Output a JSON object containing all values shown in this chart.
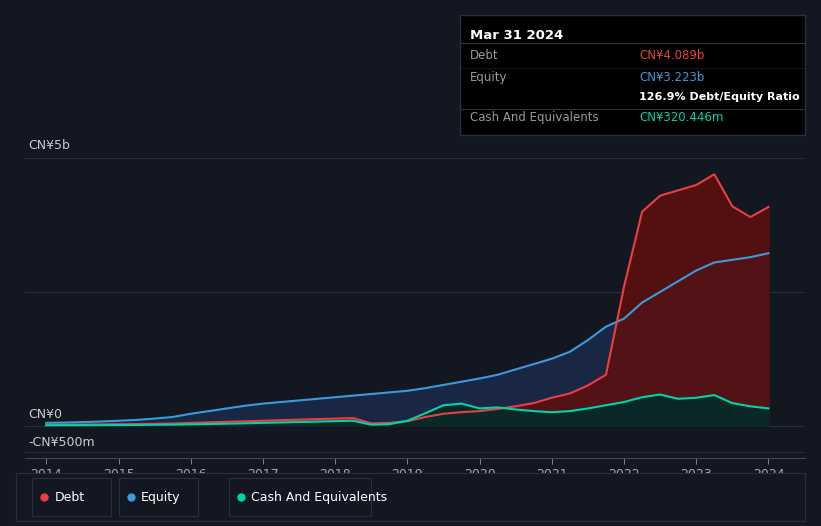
{
  "background_color": "#131722",
  "plot_bg_color": "#131722",
  "ylabel_top": "CN¥5b",
  "ylabel_zero": "CN¥0",
  "ylabel_neg": "-CN¥500m",
  "x_ticks": [
    2014,
    2015,
    2016,
    2017,
    2018,
    2019,
    2020,
    2021,
    2022,
    2023,
    2024
  ],
  "debt_color": "#e84040",
  "equity_color": "#3a9bdc",
  "cash_color": "#00d4aa",
  "debt_fill_color": "#5a1010",
  "equity_fill_color": "#1a2744",
  "cash_fill_color": "#0a2828",
  "ylim_min": -600000000,
  "ylim_max": 5500000000,
  "debt_label": "Debt",
  "equity_label": "Equity",
  "cash_label": "Cash And Equivalents",
  "tooltip_title": "Mar 31 2024",
  "tooltip_debt_label": "Debt",
  "tooltip_debt_value": "CN¥4.089b",
  "tooltip_equity_label": "Equity",
  "tooltip_equity_value": "CN¥3.223b",
  "tooltip_ratio": "126.9% Debt/Equity Ratio",
  "tooltip_cash_label": "Cash And Equivalents",
  "tooltip_cash_value": "CN¥320.446m",
  "years": [
    2014.0,
    2014.25,
    2014.5,
    2014.75,
    2015.0,
    2015.25,
    2015.5,
    2015.75,
    2016.0,
    2016.25,
    2016.5,
    2016.75,
    2017.0,
    2017.25,
    2017.5,
    2017.75,
    2018.0,
    2018.25,
    2018.5,
    2018.75,
    2019.0,
    2019.25,
    2019.5,
    2019.75,
    2020.0,
    2020.25,
    2020.5,
    2020.75,
    2021.0,
    2021.25,
    2021.5,
    2021.75,
    2022.0,
    2022.25,
    2022.5,
    2022.75,
    2023.0,
    2023.25,
    2023.5,
    2023.75,
    2024.0
  ],
  "debt": [
    15000000,
    18000000,
    20000000,
    22000000,
    25000000,
    28000000,
    32000000,
    38000000,
    50000000,
    60000000,
    70000000,
    80000000,
    90000000,
    100000000,
    110000000,
    120000000,
    130000000,
    140000000,
    40000000,
    50000000,
    80000000,
    160000000,
    220000000,
    250000000,
    270000000,
    310000000,
    360000000,
    420000000,
    520000000,
    600000000,
    750000000,
    950000000,
    2600000000,
    4000000000,
    4300000000,
    4400000000,
    4500000000,
    4700000000,
    4100000000,
    3900000000,
    4089000000
  ],
  "equity": [
    50000000,
    55000000,
    65000000,
    75000000,
    90000000,
    105000000,
    130000000,
    160000000,
    220000000,
    270000000,
    320000000,
    370000000,
    410000000,
    440000000,
    470000000,
    500000000,
    530000000,
    560000000,
    590000000,
    620000000,
    650000000,
    700000000,
    760000000,
    820000000,
    880000000,
    950000000,
    1050000000,
    1150000000,
    1250000000,
    1380000000,
    1600000000,
    1850000000,
    2000000000,
    2300000000,
    2500000000,
    2700000000,
    2900000000,
    3050000000,
    3100000000,
    3150000000,
    3223000000
  ],
  "cash": [
    4000000,
    5000000,
    6000000,
    7000000,
    9000000,
    11000000,
    14000000,
    17000000,
    22000000,
    28000000,
    35000000,
    42000000,
    50000000,
    58000000,
    66000000,
    74000000,
    82000000,
    90000000,
    15000000,
    25000000,
    90000000,
    230000000,
    380000000,
    410000000,
    320000000,
    340000000,
    300000000,
    270000000,
    250000000,
    270000000,
    320000000,
    380000000,
    440000000,
    530000000,
    580000000,
    500000000,
    520000000,
    570000000,
    420000000,
    360000000,
    320446000
  ]
}
